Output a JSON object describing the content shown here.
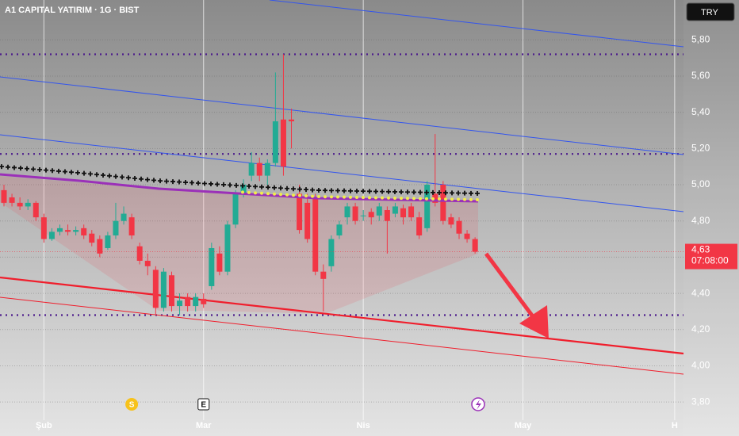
{
  "chart_data": {
    "type": "candlestick",
    "title": "A1 CAPITAL YATIRIM · 1G · BIST",
    "currency_button": "TRY",
    "categories": [
      null,
      null,
      null,
      null,
      null,
      null,
      null,
      null,
      null,
      null,
      null,
      null,
      null,
      null,
      null,
      null,
      null,
      null,
      null,
      null,
      null,
      null,
      null,
      null,
      null,
      null,
      null,
      null,
      null,
      null,
      null,
      null,
      null,
      null,
      null,
      null,
      null,
      null,
      null,
      null,
      null,
      null,
      null,
      null,
      null,
      null,
      null,
      null,
      null,
      null,
      null,
      null,
      null,
      null,
      null,
      null,
      null,
      null,
      null,
      null
    ],
    "open": [
      4.97,
      4.93,
      4.9,
      4.88,
      4.9,
      4.82,
      4.7,
      4.74,
      4.75,
      4.74,
      4.76,
      4.73,
      4.7,
      4.65,
      4.72,
      4.8,
      4.82,
      4.66,
      4.58,
      4.53,
      4.32,
      4.5,
      4.33,
      4.38,
      4.33,
      4.37,
      4.44,
      4.62,
      4.52,
      4.78,
      4.95,
      5.05,
      5.12,
      5.05,
      5.12,
      5.36,
      5.36,
      4.95,
      4.9,
      4.93,
      4.52,
      4.55,
      4.72,
      4.82,
      4.88,
      4.83,
      4.85,
      4.83,
      4.86,
      4.84,
      4.87,
      4.88,
      4.82,
      4.76,
      4.95,
      5.0,
      4.82,
      4.8,
      4.73,
      4.7
    ],
    "high": [
      5.0,
      4.95,
      4.93,
      4.92,
      4.91,
      4.84,
      4.76,
      4.78,
      4.78,
      4.77,
      4.78,
      4.75,
      4.72,
      4.74,
      4.9,
      4.88,
      4.84,
      4.68,
      4.62,
      4.55,
      4.54,
      4.52,
      4.4,
      4.4,
      4.4,
      4.4,
      4.68,
      4.66,
      4.8,
      4.97,
      5.03,
      5.18,
      5.15,
      5.14,
      5.62,
      5.72,
      5.42,
      5.0,
      4.95,
      4.95,
      4.56,
      4.72,
      4.8,
      4.9,
      4.9,
      4.86,
      4.87,
      4.9,
      4.88,
      4.9,
      4.89,
      4.9,
      4.85,
      5.02,
      5.28,
      5.02,
      4.84,
      4.82,
      4.75,
      4.71
    ],
    "low": [
      4.88,
      4.88,
      4.86,
      4.86,
      4.8,
      4.68,
      4.69,
      4.72,
      4.72,
      4.72,
      4.7,
      4.66,
      4.6,
      4.64,
      4.7,
      4.78,
      4.7,
      4.56,
      4.5,
      4.28,
      4.3,
      4.3,
      4.28,
      4.3,
      4.3,
      4.32,
      4.42,
      4.5,
      4.5,
      4.76,
      4.93,
      5.02,
      5.02,
      5.0,
      5.1,
      5.05,
      5.2,
      4.73,
      4.68,
      4.5,
      4.3,
      4.52,
      4.7,
      4.78,
      4.78,
      4.8,
      4.78,
      4.8,
      4.62,
      4.82,
      4.78,
      4.8,
      4.7,
      4.74,
      4.88,
      4.78,
      4.76,
      4.7,
      4.68,
      4.62
    ],
    "close": [
      4.9,
      4.9,
      4.88,
      4.9,
      4.82,
      4.7,
      4.74,
      4.76,
      4.74,
      4.75,
      4.72,
      4.68,
      4.62,
      4.72,
      4.8,
      4.84,
      4.72,
      4.58,
      4.55,
      4.32,
      4.52,
      4.33,
      4.36,
      4.33,
      4.38,
      4.34,
      4.65,
      4.52,
      4.78,
      4.95,
      5.0,
      5.12,
      5.05,
      5.12,
      5.35,
      5.1,
      5.35,
      4.75,
      4.7,
      4.52,
      4.48,
      4.7,
      4.78,
      4.88,
      4.8,
      4.83,
      4.82,
      4.88,
      4.8,
      4.88,
      4.82,
      4.82,
      4.72,
      5.0,
      4.9,
      4.8,
      4.78,
      4.73,
      4.7,
      4.63
    ],
    "up_color": "#22ab94",
    "down_color": "#f23645",
    "ylim": [
      3.7,
      6.02
    ],
    "yticks": [
      {
        "value": 5.8,
        "label": "5,80"
      },
      {
        "value": 5.6,
        "label": "5,60"
      },
      {
        "value": 5.4,
        "label": "5,40"
      },
      {
        "value": 5.2,
        "label": "5,20"
      },
      {
        "value": 5.0,
        "label": "5,00"
      },
      {
        "value": 4.8,
        "label": "4,80"
      },
      {
        "value": 4.6,
        "label": "4,60"
      },
      {
        "value": 4.4,
        "label": "4,40"
      },
      {
        "value": 4.2,
        "label": "4,20"
      },
      {
        "value": 4.0,
        "label": "4,00"
      },
      {
        "value": 3.8,
        "label": "3,80"
      }
    ],
    "xticks": [
      {
        "value": 5,
        "label": "Şub"
      },
      {
        "value": 25,
        "label": "Mar"
      },
      {
        "value": 45,
        "label": "Nis"
      },
      {
        "value": 65,
        "label": "May"
      },
      {
        "value": 84,
        "label": "H"
      }
    ],
    "levels": [
      5.72,
      5.17,
      4.28
    ],
    "last_price": {
      "value": 4.63,
      "label": "4,63"
    },
    "countdown": "07:08:00",
    "events": [
      {
        "x": 16,
        "label": "S"
      },
      {
        "x": 25,
        "label": "E"
      }
    ]
  }
}
